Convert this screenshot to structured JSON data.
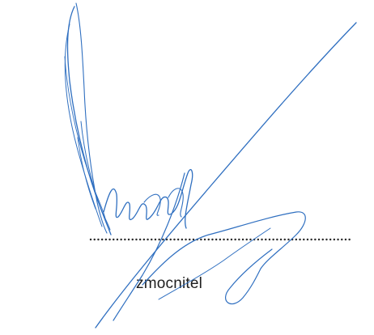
{
  "signatory": {
    "caption": "zmocnitel"
  },
  "colors": {
    "ink": "#2f6fc0",
    "dots": "#2a2a2a",
    "text": "#1e1e1e"
  }
}
